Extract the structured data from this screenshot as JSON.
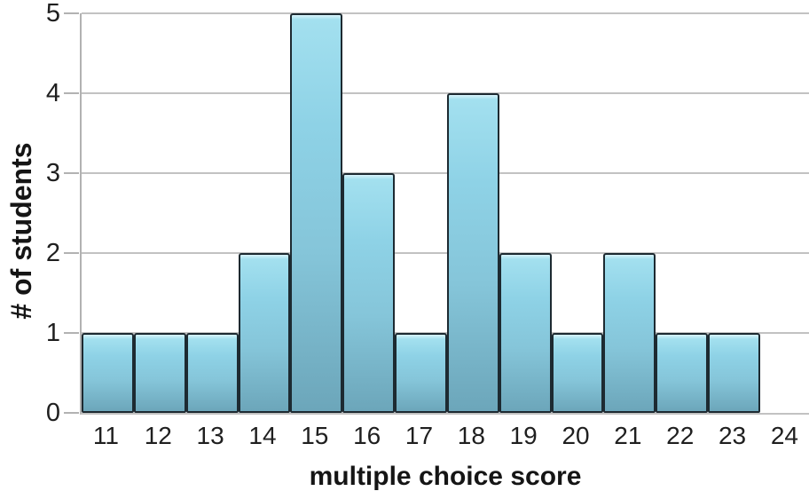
{
  "chart_data": {
    "type": "bar",
    "title": "",
    "xlabel": "multiple choice score",
    "ylabel": "# of students",
    "categories": [
      11,
      12,
      13,
      14,
      15,
      16,
      17,
      18,
      19,
      20,
      21,
      22,
      23
    ],
    "values": [
      1,
      1,
      1,
      2,
      5,
      3,
      1,
      4,
      2,
      1,
      2,
      1,
      1
    ],
    "x_axis_tick_labels": [
      "11",
      "12",
      "13",
      "14",
      "15",
      "16",
      "17",
      "18",
      "19",
      "20",
      "21",
      "22",
      "23",
      "24"
    ],
    "y_axis_tick_labels": [
      "0",
      "1",
      "2",
      "3",
      "4",
      "5"
    ],
    "xlim": [
      10.5,
      24.5
    ],
    "ylim": [
      0,
      5
    ],
    "grid": true,
    "legend": "none",
    "colors": {
      "bar_fill_light": "#8ed2e6",
      "bar_fill_dark": "#6ca6ba",
      "bar_gloss": "#d8f3fa",
      "bar_border": "#1d2a31",
      "gridline": "#c2c2c2",
      "axis_line": "#b2b2b2",
      "text": "#1f1f1f"
    }
  }
}
